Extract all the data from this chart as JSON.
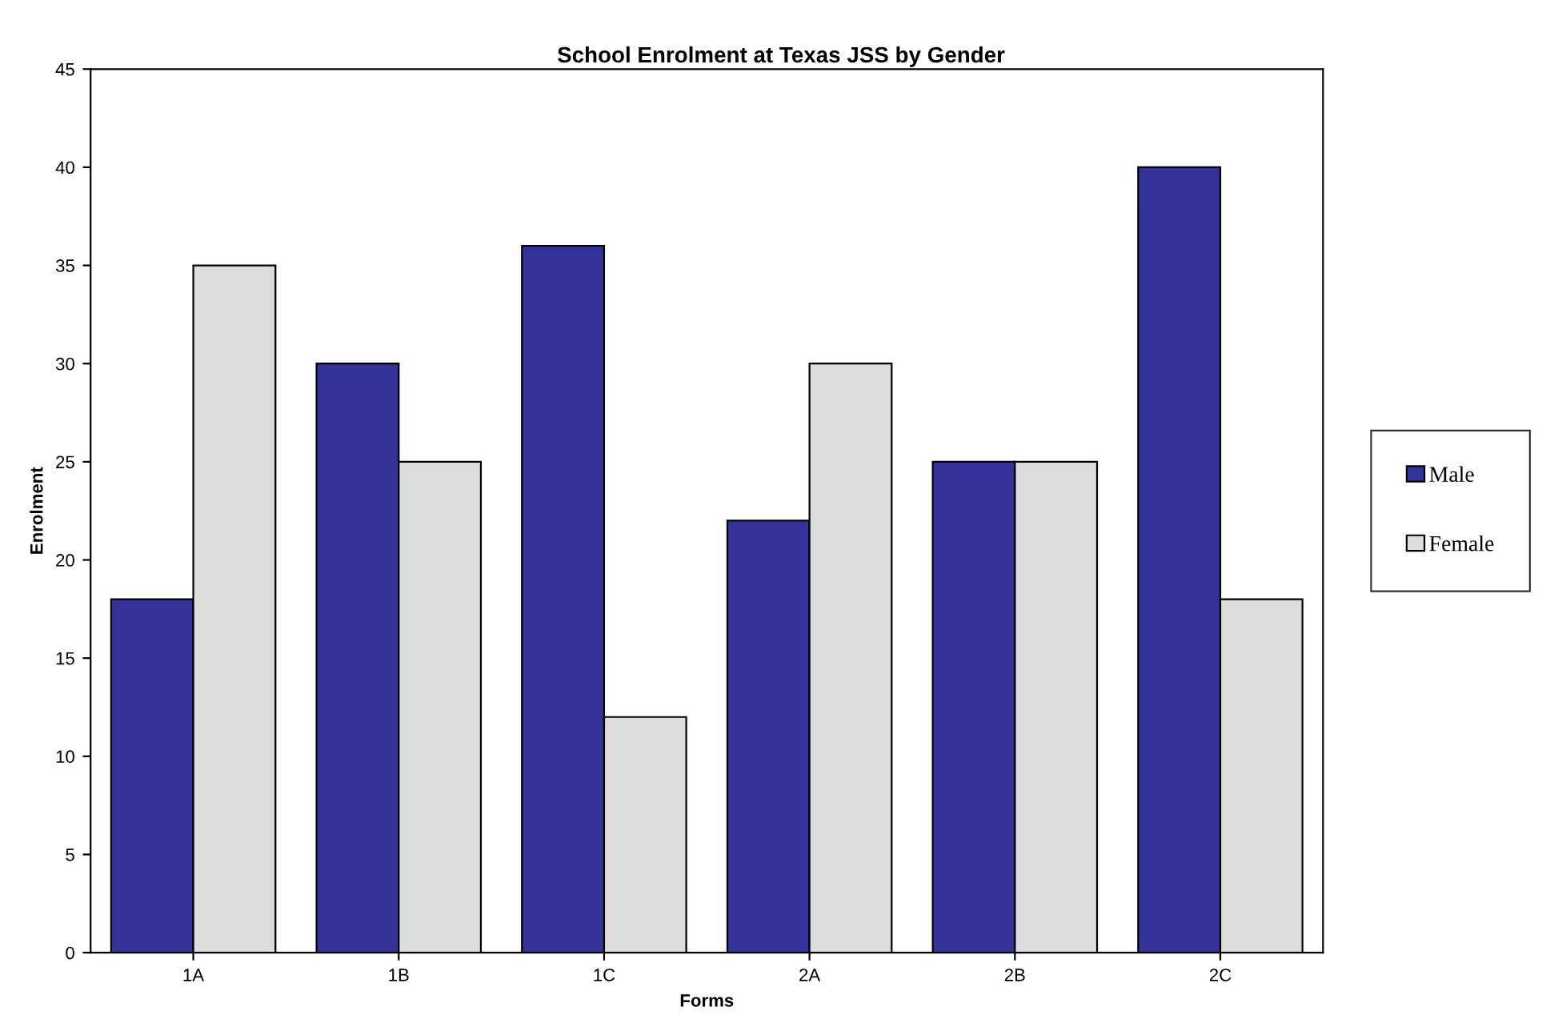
{
  "chart_data": {
    "type": "bar",
    "title": "School Enrolment at Texas JSS by Gender",
    "xlabel": "Forms",
    "ylabel": "Enrolment",
    "categories": [
      "1A",
      "1B",
      "1C",
      "2A",
      "2B",
      "2C"
    ],
    "series": [
      {
        "name": "Male",
        "color": "#333399",
        "values": [
          18,
          30,
          36,
          22,
          25,
          40
        ]
      },
      {
        "name": "Female",
        "color": "#dcdcdc",
        "values": [
          35,
          25,
          12,
          30,
          25,
          18
        ]
      }
    ],
    "ylim": [
      0,
      45
    ],
    "yticks": [
      0,
      5,
      10,
      15,
      20,
      25,
      30,
      35,
      40,
      45
    ],
    "grid": false,
    "legend": "right"
  }
}
